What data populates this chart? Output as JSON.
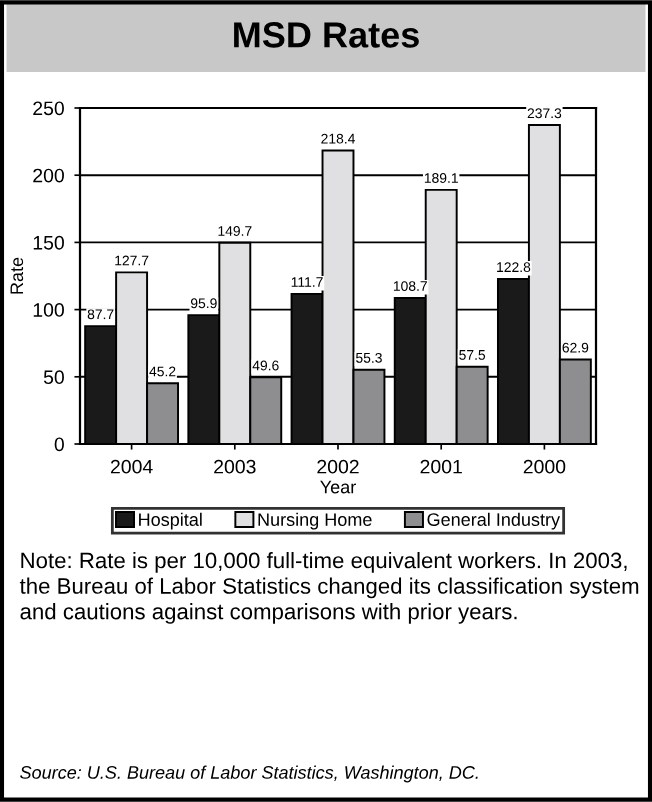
{
  "chart_data": {
    "type": "bar",
    "title": "MSD Rates",
    "xlabel": "Year",
    "ylabel": "Rate",
    "categories": [
      "2004",
      "2003",
      "2002",
      "2001",
      "2000"
    ],
    "series": [
      {
        "name": "Hospital",
        "color": "#1a1a1a",
        "values": [
          87.7,
          95.9,
          111.7,
          108.7,
          122.8
        ]
      },
      {
        "name": "Nursing Home",
        "color": "#e0e0e2",
        "values": [
          127.7,
          149.7,
          218.4,
          189.1,
          237.3
        ]
      },
      {
        "name": "General Industry",
        "color": "#8e8e90",
        "values": [
          45.2,
          49.6,
          55.3,
          57.5,
          62.9
        ]
      }
    ],
    "ylim": [
      0,
      250
    ],
    "yticks": [
      0,
      50,
      100,
      150,
      200,
      250
    ],
    "grid": "y",
    "data_labels": true,
    "legend": "bottom",
    "annotations": [
      "Note: Rate is per 10,000 full-time equivalent workers. In 2003, the Bureau of Labor Statistics changed its classification system and cautions against comparisons with prior years.",
      "Source: U.S. Bureau of Labor Statistics, Washington, DC."
    ]
  }
}
